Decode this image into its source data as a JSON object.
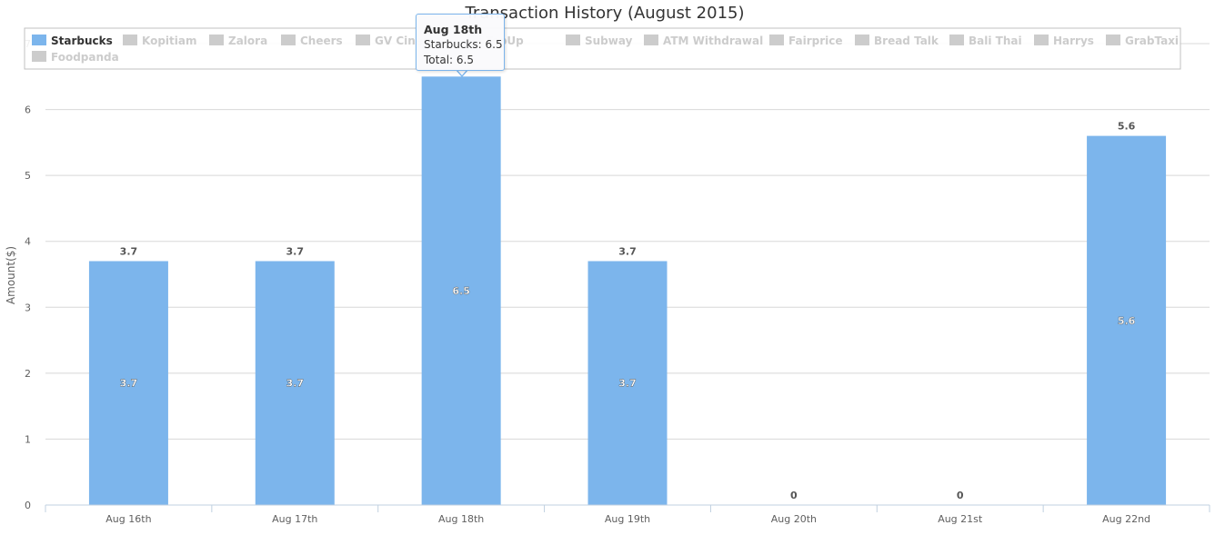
{
  "chart_data": {
    "type": "bar",
    "title": "Transaction History (August 2015)",
    "ylabel": "Amount($)",
    "xlabel": "",
    "ylim": [
      0,
      7
    ],
    "yticks": [
      0,
      1,
      2,
      3,
      4,
      5,
      6,
      7
    ],
    "categories": [
      "Aug 16th",
      "Aug 17th",
      "Aug 18th",
      "Aug 19th",
      "Aug 20th",
      "Aug 21st",
      "Aug 22nd"
    ],
    "series": [
      {
        "name": "Starbucks",
        "values": [
          3.7,
          3.7,
          6.5,
          3.7,
          0,
          0,
          5.6
        ],
        "color": "#7cb5ec",
        "visible": true
      }
    ],
    "stack_totals": [
      "3.7",
      "3.7",
      "",
      "3.7",
      "0",
      "0",
      "5.6"
    ],
    "legend": {
      "placement": "top",
      "items": [
        {
          "name": "Starbucks",
          "active": true
        },
        {
          "name": "Kopitiam",
          "active": false
        },
        {
          "name": "Zalora",
          "active": false
        },
        {
          "name": "Cheers",
          "active": false
        },
        {
          "name": "GV Cinema",
          "active": false
        },
        {
          "name": "TopUp",
          "active": false
        },
        {
          "name": "Subway",
          "active": false
        },
        {
          "name": "ATM Withdrawal",
          "active": false
        },
        {
          "name": "Fairprice",
          "active": false
        },
        {
          "name": "Bread Talk",
          "active": false
        },
        {
          "name": "Bali Thai",
          "active": false
        },
        {
          "name": "Harrys",
          "active": false
        },
        {
          "name": "GrabTaxi",
          "active": false
        },
        {
          "name": "Foodpanda",
          "active": false
        }
      ]
    },
    "tooltip": {
      "title": "Aug 18th",
      "line1": "Starbucks: 6.5",
      "line2": "Total: 6.5"
    },
    "grid": true,
    "colors": {
      "bar": "#7cb5ec",
      "inactive": "#cccccc",
      "grid": "#d8d8d8",
      "axis": "#c0d0e0"
    }
  }
}
